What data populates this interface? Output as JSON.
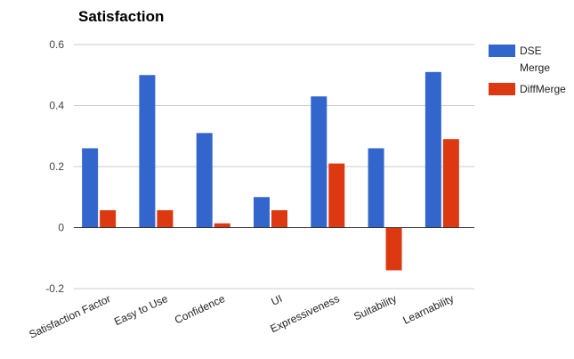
{
  "chart_data": {
    "type": "bar",
    "title": "Satisfaction",
    "xlabel": "",
    "ylabel": "",
    "ylim": [
      -0.2,
      0.6
    ],
    "yticks": [
      -0.2,
      0,
      0.2,
      0.4,
      0.6
    ],
    "ytick_labels": [
      "-0.2",
      "0",
      "0.2",
      "0.4",
      "0.6"
    ],
    "grid": true,
    "legend_position": "right",
    "categories": [
      "Satisfaction Factor",
      "Easy to Use",
      "Confidence",
      "UI",
      "Expressiveness",
      "Suitability",
      "Learnability"
    ],
    "series": [
      {
        "name": "DSE Merge",
        "legend_lines": [
          "DSE",
          "Merge"
        ],
        "color": "#3366cc",
        "values": [
          0.26,
          0.5,
          0.31,
          0.1,
          0.43,
          0.26,
          0.51
        ]
      },
      {
        "name": "DiffMerge",
        "legend_lines": [
          "DiffMerge"
        ],
        "color": "#dc3912",
        "values": [
          0.057,
          0.057,
          0.014,
          0.057,
          0.21,
          -0.14,
          0.29
        ]
      }
    ]
  }
}
